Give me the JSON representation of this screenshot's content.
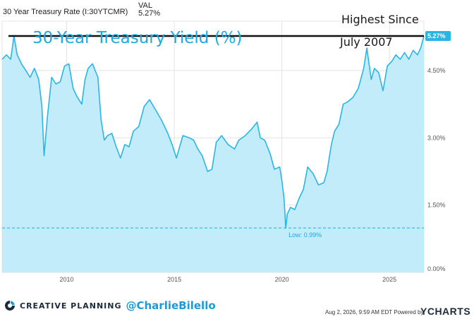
{
  "header": {
    "series_label": "30 Year Treasury Rate (I:30YTCMR)",
    "val_label": "VAL",
    "val_value": "5.27%"
  },
  "annotations": {
    "title": "30-Year Treasury Yield (%)",
    "note_line1": "Highest Since",
    "note_line2": "July 2007",
    "current_badge": "5.27%",
    "low_label": "Low: 0.99%"
  },
  "footer": {
    "brand": "CREATIVE PLANNING",
    "handle": "@CharlieBilello",
    "date": "Aug 2, 2026, 9:59 AM EDT Powered by",
    "ycharts": "YCHARTS"
  },
  "colors": {
    "line": "#29b6e6",
    "fill": "#c3ecfa",
    "accent_text": "#1fa9e0"
  },
  "chart_data": {
    "type": "area",
    "title": "30-Year Treasury Yield (%)",
    "xlabel": "",
    "ylabel": "",
    "xlim": [
      2007.0,
      2026.6
    ],
    "ylim": [
      0,
      5.6
    ],
    "yticks": [
      0,
      1.5,
      3.0,
      4.5
    ],
    "ytick_labels": [
      "0.00%",
      "1.50%",
      "3.00%",
      "4.50%"
    ],
    "xticks": [
      2010,
      2015,
      2020,
      2025
    ],
    "xtick_labels": [
      "2010",
      "2015",
      "2020",
      "2025"
    ],
    "grid": true,
    "reference_lines": [
      {
        "value": 5.27,
        "style": "solid",
        "label": "5.27%"
      },
      {
        "value": 0.99,
        "style": "dashed",
        "label": "Low: 0.99%"
      }
    ],
    "series": [
      {
        "x": [
          2007.0,
          2007.2,
          2007.4,
          2007.55,
          2007.7,
          2007.9,
          2008.1,
          2008.3,
          2008.5,
          2008.7,
          2008.85,
          2008.95,
          2009.1,
          2009.3,
          2009.5,
          2009.7,
          2009.9,
          2010.1,
          2010.3,
          2010.5,
          2010.7,
          2010.85,
          2011.0,
          2011.2,
          2011.45,
          2011.6,
          2011.75,
          2011.9,
          2012.1,
          2012.3,
          2012.5,
          2012.7,
          2012.9,
          2013.1,
          2013.35,
          2013.6,
          2013.85,
          2014.1,
          2014.4,
          2014.7,
          2014.9,
          2015.1,
          2015.4,
          2015.7,
          2015.9,
          2016.1,
          2016.3,
          2016.55,
          2016.75,
          2016.95,
          2017.2,
          2017.5,
          2017.8,
          2018.0,
          2018.3,
          2018.6,
          2018.85,
          2019.0,
          2019.2,
          2019.45,
          2019.65,
          2019.9,
          2020.0,
          2020.1,
          2020.18,
          2020.25,
          2020.4,
          2020.6,
          2020.8,
          2021.0,
          2021.2,
          2021.45,
          2021.7,
          2021.95,
          2022.1,
          2022.3,
          2022.45,
          2022.65,
          2022.85,
          2023.05,
          2023.3,
          2023.55,
          2023.8,
          2023.95,
          2024.15,
          2024.3,
          2024.5,
          2024.7,
          2024.9,
          2025.1,
          2025.3,
          2025.5,
          2025.7,
          2025.9,
          2026.1,
          2026.3,
          2026.45,
          2026.6
        ],
        "values": [
          4.75,
          4.85,
          4.75,
          5.27,
          4.85,
          4.65,
          4.5,
          4.35,
          4.55,
          4.3,
          3.7,
          2.6,
          3.45,
          4.35,
          4.2,
          4.25,
          4.6,
          4.65,
          4.1,
          3.9,
          3.75,
          4.3,
          4.55,
          4.65,
          4.35,
          3.4,
          2.95,
          3.05,
          3.1,
          2.8,
          2.55,
          2.85,
          2.8,
          3.15,
          3.25,
          3.7,
          3.85,
          3.65,
          3.4,
          3.1,
          2.85,
          2.55,
          3.05,
          3.0,
          2.95,
          2.75,
          2.6,
          2.25,
          2.3,
          2.9,
          3.05,
          2.85,
          2.75,
          2.95,
          3.05,
          3.2,
          3.35,
          3.0,
          2.95,
          2.65,
          2.3,
          2.35,
          2.05,
          1.65,
          0.99,
          1.3,
          1.45,
          1.4,
          1.65,
          1.85,
          2.35,
          2.2,
          1.95,
          2.0,
          2.25,
          2.85,
          3.15,
          3.3,
          3.75,
          3.8,
          3.9,
          4.1,
          4.55,
          5.0,
          4.3,
          4.55,
          4.45,
          4.05,
          4.6,
          4.7,
          4.85,
          4.75,
          4.9,
          4.75,
          4.95,
          4.85,
          5.0,
          5.27
        ]
      }
    ]
  }
}
